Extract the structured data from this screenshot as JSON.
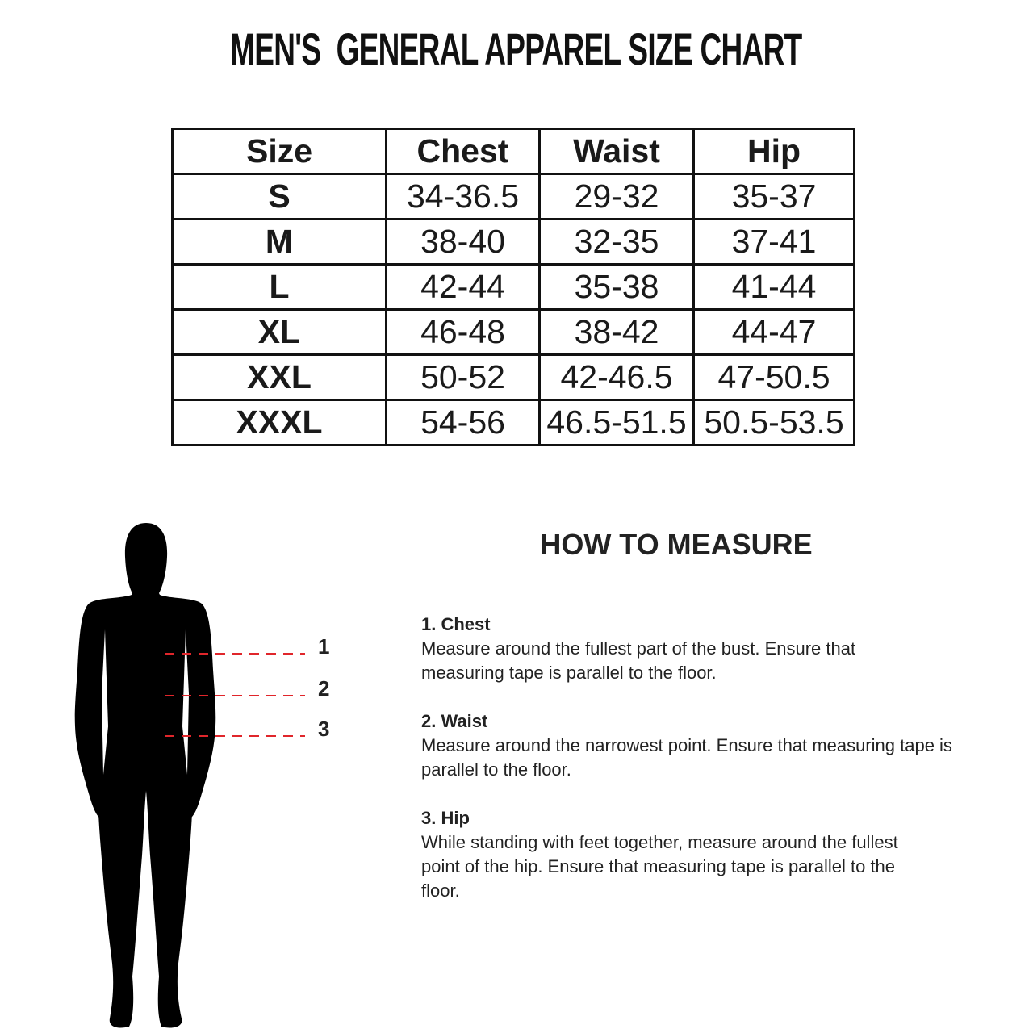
{
  "title": "MEN'S  GENERAL APPAREL SIZE CHART",
  "table": {
    "headers": [
      "Size",
      "Chest",
      "Waist",
      "Hip"
    ],
    "rows": [
      [
        "S",
        "34-36.5",
        "29-32",
        "35-37"
      ],
      [
        "M",
        "38-40",
        "32-35",
        "37-41"
      ],
      [
        "L",
        "42-44",
        "35-38",
        "41-44"
      ],
      [
        "XL",
        "46-48",
        "38-42",
        "44-47"
      ],
      [
        "XXL",
        "50-52",
        "42-46.5",
        "47-50.5"
      ],
      [
        "XXXL",
        "54-56",
        "46.5-51.5",
        "50.5-53.5"
      ]
    ]
  },
  "figure": {
    "markers": [
      "1",
      "2",
      "3"
    ],
    "dash_color": "#e0262b"
  },
  "how_to_measure": {
    "heading": "HOW TO MEASURE",
    "sections": [
      {
        "title": "1. Chest",
        "text": "Measure around the fullest part of the bust. Ensure that measuring tape is parallel to the floor."
      },
      {
        "title": "2. Waist",
        "text": "Measure around the narrowest point. Ensure that measuring tape is parallel to the floor."
      },
      {
        "title": "3. Hip",
        "text": "While standing with feet together, measure around the fullest point of the hip. Ensure that measuring tape is parallel to the floor."
      }
    ]
  }
}
